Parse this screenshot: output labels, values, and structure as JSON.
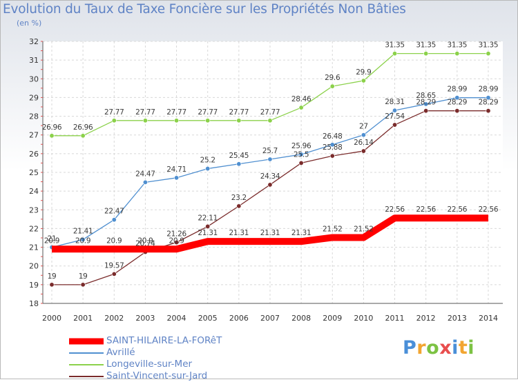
{
  "chart_data": {
    "type": "line",
    "title": "Evolution du Taux de Taxe Foncière sur les Propriétés Non Bâties",
    "subtitle": "(en %)",
    "ylim": [
      18,
      32
    ],
    "yticks": [
      "18",
      "19",
      "20",
      "21",
      "22",
      "23",
      "24",
      "25",
      "26",
      "27",
      "28",
      "29",
      "30",
      "31",
      "32"
    ],
    "categories": [
      "2000",
      "2001",
      "2002",
      "2003",
      "2004",
      "2005",
      "2006",
      "2007",
      "2008",
      "2009",
      "2010",
      "2011",
      "2012",
      "2013",
      "2014"
    ],
    "series": [
      {
        "name": "SAINT-HILAIRE-LA-FORêT",
        "color": "#ff0000",
        "values": [
          20.9,
          20.9,
          20.9,
          20.9,
          20.9,
          21.31,
          21.31,
          21.31,
          21.31,
          21.52,
          21.52,
          22.56,
          22.56,
          22.56,
          22.56
        ],
        "labels": [
          "20.9",
          "20.9",
          "20.9",
          "20.9",
          "20.9",
          "21.31",
          "21.31",
          "21.31",
          "21.31",
          "21.52",
          "21.52",
          "22.56",
          "22.56",
          "22.56",
          "22.56"
        ]
      },
      {
        "name": "Avrillé",
        "color": "#4f8fd0",
        "values": [
          21,
          21.41,
          22.47,
          24.47,
          24.71,
          25.2,
          25.45,
          25.7,
          25.96,
          26.48,
          27,
          28.31,
          28.65,
          28.99,
          28.99
        ],
        "labels": [
          "21",
          "21.41",
          "22.47",
          "24.47",
          "24.71",
          "25.2",
          "25.45",
          "25.7",
          "25.96",
          "26.48",
          "27",
          "28.31",
          "28.65",
          "28.99",
          "28.99"
        ]
      },
      {
        "name": "Longeville-sur-Mer",
        "color": "#8bd14a",
        "values": [
          26.96,
          26.96,
          27.77,
          27.77,
          27.77,
          27.77,
          27.77,
          27.77,
          28.46,
          29.6,
          29.9,
          31.35,
          31.35,
          31.35,
          31.35
        ],
        "labels": [
          "26.96",
          "26.96",
          "27.77",
          "27.77",
          "27.77",
          "27.77",
          "27.77",
          "27.77",
          "28.46",
          "29.6",
          "29.9",
          "31.35",
          "31.35",
          "31.35",
          "31.35"
        ]
      },
      {
        "name": "Saint-Vincent-sur-Jard",
        "color": "#7a2b2b",
        "values": [
          19,
          19,
          19.57,
          20.74,
          21.26,
          22.11,
          23.2,
          24.34,
          25.5,
          25.88,
          26.14,
          27.54,
          28.29,
          28.29,
          28.29
        ],
        "labels": [
          "19",
          "19",
          "19.57",
          "20.74",
          "21.26",
          "22.11",
          "23.2",
          "24.34",
          "25.5",
          "25.88",
          "26.14",
          "27.54",
          "28.29",
          "28.29",
          "28.29"
        ]
      }
    ],
    "legend": {
      "position": "bottom-left",
      "entries": [
        "SAINT-HILAIRE-LA-FORêT",
        "Avrillé",
        "Longeville-sur-Mer",
        "Saint-Vincent-sur-Jard"
      ]
    }
  },
  "logo": {
    "letters": [
      "P",
      "r",
      "o",
      "x",
      "i",
      "t",
      "i"
    ]
  }
}
